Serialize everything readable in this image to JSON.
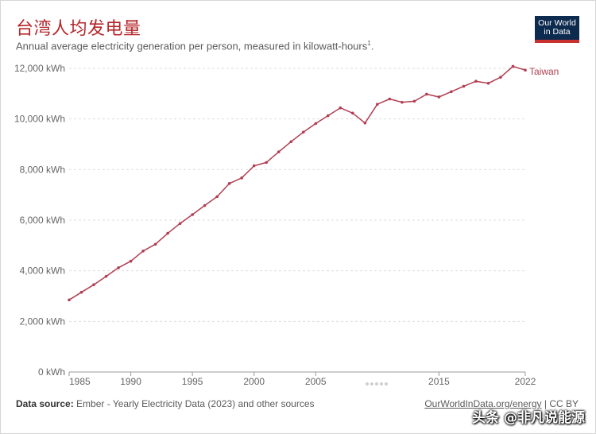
{
  "header": {
    "title": "台湾人均发电量",
    "subtitle": "Annual average electricity generation per person, measured in kilowatt-hours",
    "subtitle_sup": "1",
    "logo_line1": "Our World",
    "logo_line2": "in Data"
  },
  "footer": {
    "source_label": "Data source:",
    "source_text": " Ember - Yearly Electricity Data (2023) and other sources",
    "link_text": "OurWorldInData.org/energy",
    "license_text": " | CC BY",
    "watermark": "头条 @非凡说能源"
  },
  "colors": {
    "series": "#b13f52",
    "title": "#b5262b",
    "grid": "#dddddd",
    "axis": "#666666"
  },
  "chart_data": {
    "type": "line",
    "title": "台湾人均发电量",
    "subtitle": "Annual average electricity generation per person, measured in kilowatt-hours",
    "xlabel": "",
    "ylabel": "",
    "xlim": [
      1985,
      2022
    ],
    "ylim": [
      0,
      12000
    ],
    "x_ticks": [
      1985,
      1990,
      1995,
      2000,
      2005,
      2015,
      2022
    ],
    "y_ticks": [
      0,
      2000,
      4000,
      6000,
      8000,
      10000,
      12000
    ],
    "y_tick_labels": [
      "0 kWh",
      "2,000 kWh",
      "4,000 kWh",
      "6,000 kWh",
      "8,000 kWh",
      "10,000 kWh",
      "12,000 kWh"
    ],
    "grid": "horizontal dashed",
    "series": [
      {
        "name": "Taiwan",
        "x": [
          1985,
          1986,
          1987,
          1988,
          1989,
          1990,
          1991,
          1992,
          1993,
          1994,
          1995,
          1996,
          1997,
          1998,
          1999,
          2000,
          2001,
          2002,
          2003,
          2004,
          2005,
          2006,
          2007,
          2008,
          2009,
          2010,
          2011,
          2012,
          2013,
          2014,
          2015,
          2016,
          2017,
          2018,
          2019,
          2020,
          2021,
          2022
        ],
        "y": [
          2850,
          3150,
          3450,
          3780,
          4120,
          4380,
          4780,
          5050,
          5480,
          5870,
          6220,
          6580,
          6930,
          7450,
          7670,
          8150,
          8280,
          8700,
          9100,
          9480,
          9820,
          10130,
          10440,
          10230,
          9840,
          10580,
          10790,
          10660,
          10700,
          10980,
          10870,
          11080,
          11290,
          11490,
          11410,
          11650,
          12080,
          11930
        ]
      }
    ]
  }
}
